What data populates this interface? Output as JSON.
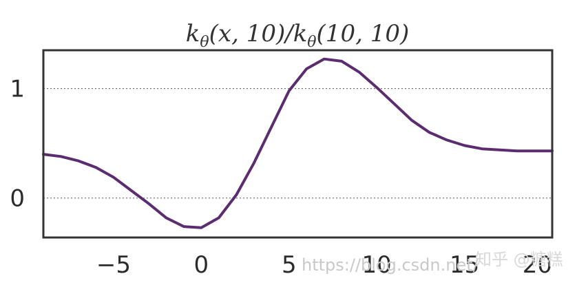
{
  "chart_data": {
    "type": "line",
    "title": "k̃θ(x, 10)/k̃θ(10, 10)",
    "title_parts": {
      "k1": "k",
      "sub1": "θ",
      "args1": "(x, 10)/",
      "k2": "k",
      "sub2": "θ",
      "args2": "(10, 10)"
    },
    "xlabel": "",
    "ylabel": "",
    "xlim": [
      -9,
      20
    ],
    "ylim": [
      -0.36,
      1.35
    ],
    "x_ticks": [
      -5,
      0,
      5,
      10,
      15,
      20
    ],
    "x_tick_labels": [
      "−5",
      "0",
      "5",
      "10",
      "15",
      "20"
    ],
    "y_ticks": [
      0,
      1
    ],
    "y_tick_labels": [
      "0",
      "1"
    ],
    "grid": "horizontal-dotted",
    "legend": "none",
    "series": [
      {
        "color": "#5b2c6f",
        "x": [
          -9,
          -8,
          -7,
          -6,
          -5,
          -4,
          -3,
          -2,
          -1,
          0,
          1,
          2,
          3,
          4,
          5,
          6,
          7,
          8,
          9,
          10,
          11,
          12,
          13,
          14,
          15,
          16,
          17,
          18,
          19,
          20
        ],
        "y": [
          0.4,
          0.38,
          0.34,
          0.28,
          0.19,
          0.07,
          -0.05,
          -0.18,
          -0.26,
          -0.27,
          -0.18,
          0.03,
          0.32,
          0.65,
          0.98,
          1.18,
          1.27,
          1.25,
          1.15,
          1.01,
          0.86,
          0.71,
          0.6,
          0.53,
          0.48,
          0.45,
          0.44,
          0.43,
          0.43,
          0.43
        ]
      }
    ]
  },
  "watermark": {
    "url_text": "https://blog.csdn.net/",
    "site_text": "知乎 @糖糕"
  },
  "colors": {
    "line": "#5b2c6f",
    "frame": "#333333",
    "grid": "#555555",
    "text": "#2b2b2b"
  }
}
